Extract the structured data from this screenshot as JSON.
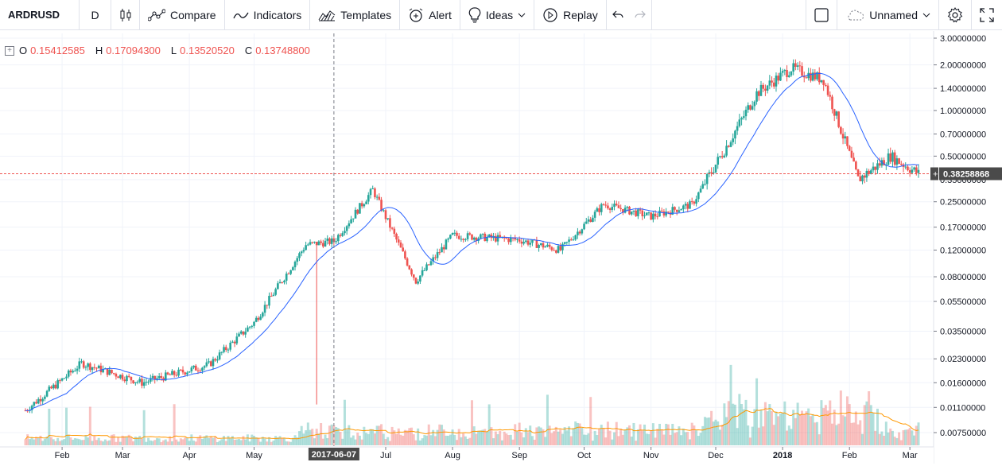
{
  "toolbar": {
    "symbol": "ARDRUSD",
    "interval": "D",
    "compare": "Compare",
    "indicators": "Indicators",
    "templates": "Templates",
    "alert": "Alert",
    "ideas": "Ideas",
    "replay": "Replay",
    "layout_name": "Unnamed"
  },
  "legend": {
    "o_label": "O",
    "o_value": "0.15412585",
    "h_label": "H",
    "h_value": "0.17094300",
    "l_label": "L",
    "l_value": "0.13520520",
    "c_label": "C",
    "c_value": "0.13748800"
  },
  "colors": {
    "up": "#26a69a",
    "down": "#ef5350",
    "ma_line": "#2962ff",
    "volume_ma": "#ff9800",
    "last_price": "#ef5350"
  },
  "chart_data": {
    "type": "candlestick",
    "scale": "log",
    "price_axis_ticks": [
      "3.00000000",
      "2.00000000",
      "1.40000000",
      "1.00000000",
      "0.70000000",
      "0.50000000",
      "0.35000000",
      "0.25000000",
      "0.17000000",
      "0.12000000",
      "0.08000000",
      "0.05500000",
      "0.03500000",
      "0.02300000",
      "0.01600000",
      "0.01100000",
      "0.00750000"
    ],
    "time_axis_labels": [
      "Feb",
      "Mar",
      "Apr",
      "May",
      "Jul",
      "Aug",
      "Sep",
      "Oct",
      "Nov",
      "Dec",
      "2018",
      "Feb",
      "Mar"
    ],
    "crosshair_date": "2017-06-07",
    "last_price": "0.38258868",
    "price_anchors": [
      {
        "date": "2017-01-15",
        "close": 0.0105
      },
      {
        "date": "2017-02-10",
        "close": 0.0215
      },
      {
        "date": "2017-03-10",
        "close": 0.016
      },
      {
        "date": "2017-04-10",
        "close": 0.021
      },
      {
        "date": "2017-05-01",
        "close": 0.04
      },
      {
        "date": "2017-05-25",
        "close": 0.13
      },
      {
        "date": "2017-06-07",
        "close": 0.137
      },
      {
        "date": "2017-06-25",
        "close": 0.3
      },
      {
        "date": "2017-07-15",
        "close": 0.075
      },
      {
        "date": "2017-08-01",
        "close": 0.15
      },
      {
        "date": "2017-09-01",
        "close": 0.14
      },
      {
        "date": "2017-09-20",
        "close": 0.12
      },
      {
        "date": "2017-10-10",
        "close": 0.24
      },
      {
        "date": "2017-11-01",
        "close": 0.2
      },
      {
        "date": "2017-11-20",
        "close": 0.24
      },
      {
        "date": "2017-12-05",
        "close": 0.55
      },
      {
        "date": "2017-12-20",
        "close": 1.3
      },
      {
        "date": "2018-01-05",
        "close": 1.9
      },
      {
        "date": "2018-01-20",
        "close": 1.6
      },
      {
        "date": "2018-02-05",
        "close": 0.35
      },
      {
        "date": "2018-02-20",
        "close": 0.5
      },
      {
        "date": "2018-03-05",
        "close": 0.3826
      }
    ]
  }
}
